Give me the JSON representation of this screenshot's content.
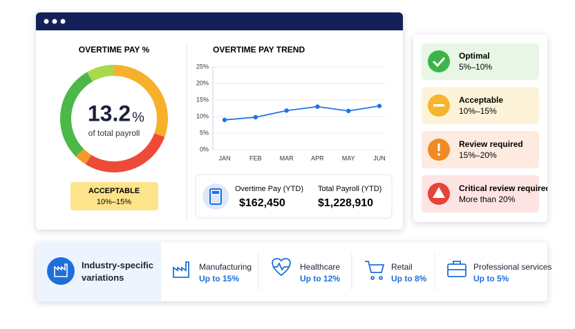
{
  "chart_data": [
    {
      "type": "gauge",
      "title": "OVERTIME PAY %",
      "value": 13.2,
      "unit": "%",
      "caption": "of total payroll",
      "status": {
        "label": "ACCEPTABLE",
        "range": "10%–15%"
      }
    },
    {
      "type": "line",
      "title": "OVERTIME PAY TREND",
      "categories": [
        "JAN",
        "FEB",
        "MAR",
        "APR",
        "MAY",
        "JUN"
      ],
      "series": [
        {
          "color": "#1e73e8",
          "values": [
            9,
            9.8,
            11.8,
            13,
            11.7,
            13.2
          ]
        }
      ],
      "ylim": [
        0,
        25
      ],
      "yticks": [
        {
          "value": 0,
          "label": "0%"
        },
        {
          "value": 5,
          "label": "5%"
        },
        {
          "value": 10,
          "label": "10%"
        },
        {
          "value": 15,
          "label": "15%"
        },
        {
          "value": 20,
          "label": "20%"
        },
        {
          "value": 25,
          "label": "25%"
        }
      ],
      "grid": true
    }
  ],
  "summary": [
    {
      "label": "Overtime Pay (YTD)",
      "value": "$162,450"
    },
    {
      "label": "Total Payroll (YTD)",
      "value": "$1,228,910"
    }
  ],
  "legend": [
    {
      "title": "Optimal",
      "range": "5%–10%"
    },
    {
      "title": "Acceptable",
      "range": "10%–15%"
    },
    {
      "title": "Review required",
      "range": "15%–20%"
    },
    {
      "title": "Critical review required",
      "range": "More than 20%"
    }
  ],
  "industries": {
    "title": "Industry-specific variations",
    "items": [
      {
        "name": "Manufacturing",
        "value": "Up to 15%"
      },
      {
        "name": "Healthcare",
        "value": "Up to 12%"
      },
      {
        "name": "Retail",
        "value": "Up to 8%"
      },
      {
        "name": "Professional services",
        "value": "Up to 5%"
      }
    ]
  }
}
